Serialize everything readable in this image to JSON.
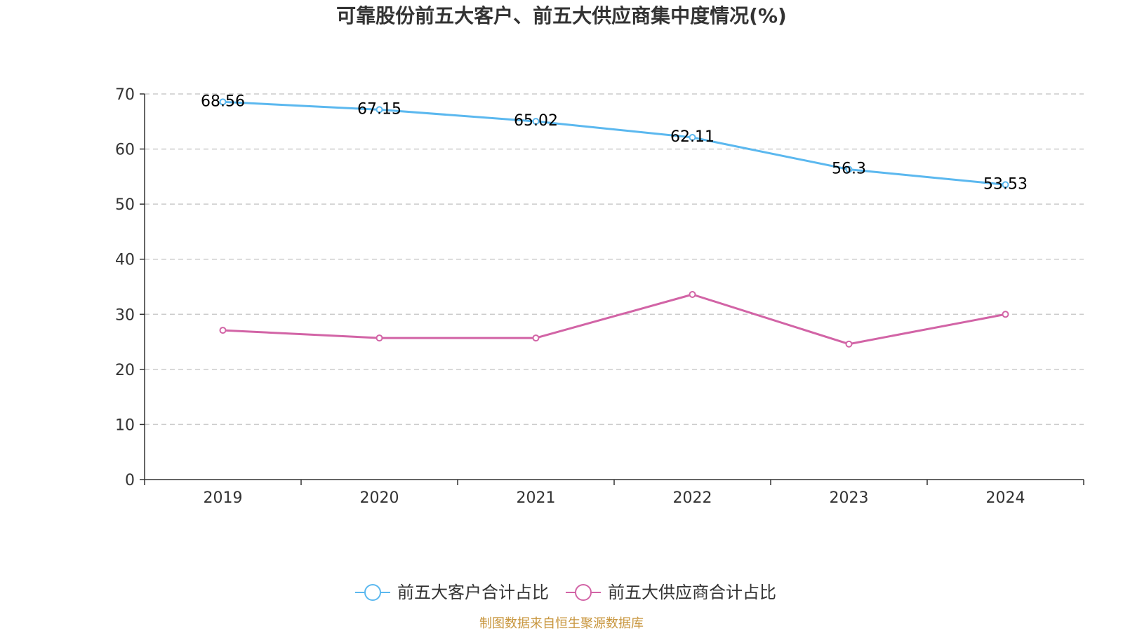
{
  "chart_data": {
    "type": "line",
    "title": "可靠股份前五大客户、前五大供应商集中度情况(%)",
    "categories": [
      "2019",
      "2020",
      "2021",
      "2022",
      "2023",
      "2024"
    ],
    "ylim": [
      0,
      70
    ],
    "yticks": [
      0,
      10,
      20,
      30,
      40,
      50,
      60,
      70
    ],
    "grid": true,
    "legend_position": "bottom-center",
    "series": [
      {
        "name": "前五大客户合计占比",
        "color": "#5bb8ef",
        "values": [
          68.56,
          67.15,
          65.02,
          62.11,
          56.3,
          53.53
        ],
        "labels": [
          "68.56",
          "67.15",
          "65.02",
          "62.11",
          "56.3",
          "53.53"
        ],
        "show_labels": true
      },
      {
        "name": "前五大供应商合计占比",
        "color": "#d264a6",
        "values": [
          27.1,
          25.7,
          25.7,
          33.6,
          24.6,
          30.0
        ],
        "labels": [],
        "show_labels": false
      }
    ],
    "source": "制图数据来自恒生聚源数据库"
  }
}
